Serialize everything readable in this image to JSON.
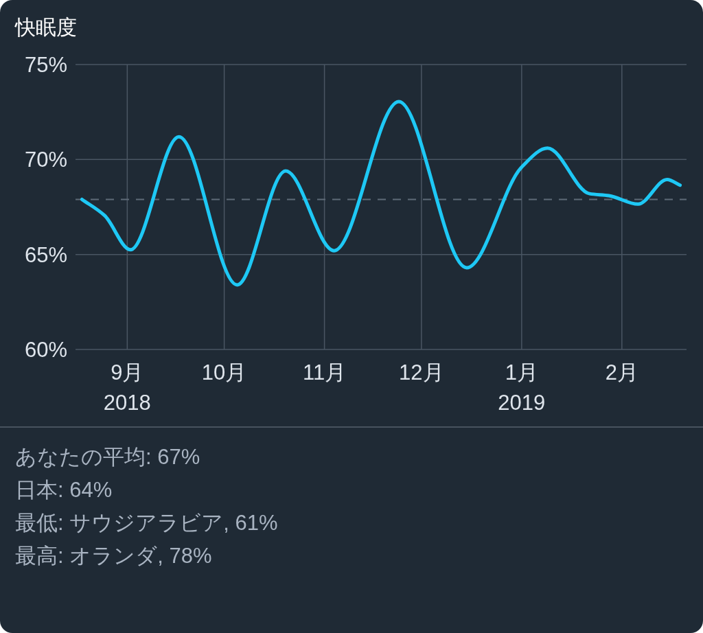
{
  "chart_data": {
    "type": "line",
    "title": "快眠度",
    "x": [
      "2018-08-18",
      "2018-08-25",
      "2018-09-02",
      "2018-09-17",
      "2018-10-05",
      "2018-10-20",
      "2018-11-04",
      "2018-11-24",
      "2018-12-15",
      "2019-01-01",
      "2019-01-09",
      "2019-01-22",
      "2019-01-28",
      "2019-02-06",
      "2019-02-15",
      "2019-02-19"
    ],
    "series": [
      {
        "color": "#1ec8f5",
        "values": [
          67.9,
          67.05,
          65.25,
          71.2,
          63.4,
          69.4,
          65.2,
          73.05,
          64.3,
          69.6,
          70.6,
          68.2,
          68.1,
          67.65,
          68.95,
          68.65
        ]
      }
    ],
    "xlim": [
      "2018-08-16",
      "2019-02-21"
    ],
    "xticks": [
      {
        "value": "2018-09-01",
        "label": "9月\n2018"
      },
      {
        "value": "2018-10-01",
        "label": "10月"
      },
      {
        "value": "2018-11-01",
        "label": "11月"
      },
      {
        "value": "2018-12-01",
        "label": "12月"
      },
      {
        "value": "2019-01-01",
        "label": "1月\n2019"
      },
      {
        "value": "2019-02-01",
        "label": "2月"
      }
    ],
    "ylim": [
      60,
      75
    ],
    "yticks": [
      {
        "value": 60,
        "label": "60%"
      },
      {
        "value": 65,
        "label": "65%"
      },
      {
        "value": 70,
        "label": "70%"
      },
      {
        "value": 75,
        "label": "75%"
      }
    ],
    "grid": true,
    "line_style": "solid",
    "marker": "none",
    "ref_lines": [
      {
        "axis": "y",
        "value": 67.9,
        "color": "#5f6b78",
        "line_style": "dashed"
      }
    ],
    "annotations": [
      "あなたの平均: 67%",
      "日本: 64%",
      "最低: サウジアラビア, 61%",
      "最高: オランダ, 78%"
    ]
  }
}
